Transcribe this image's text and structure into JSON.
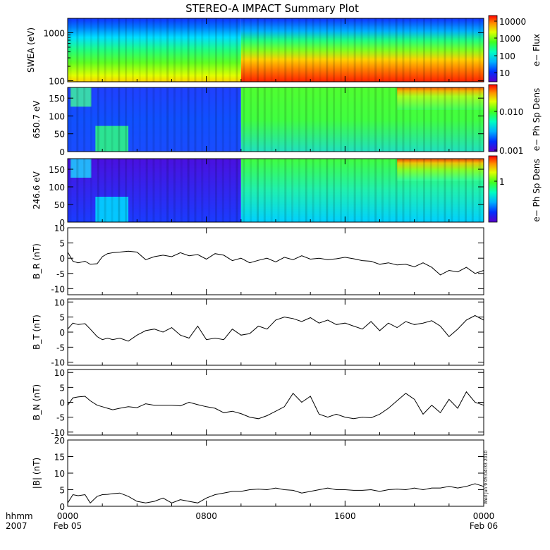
{
  "title": "STEREO-A IMPACT Summary Plot",
  "stamp": "Wed Jun 9 05:04:33 2010",
  "time_axis": {
    "label_top": "hhmm",
    "label_bottom": "2007",
    "ticks": [
      {
        "hour": 0,
        "top": "0000",
        "bottom": "Feb 05"
      },
      {
        "hour": 8,
        "top": "0800",
        "bottom": ""
      },
      {
        "hour": 16,
        "top": "1600",
        "bottom": ""
      },
      {
        "hour": 24,
        "top": "0000",
        "bottom": "Feb 06"
      }
    ]
  },
  "colorbars": [
    {
      "label": "e− Flux",
      "ticks": [
        "10000",
        "1000",
        "100",
        "10"
      ]
    },
    {
      "label": "e− Ph Sp Dens",
      "ticks": [
        "0.010",
        "0.001"
      ]
    },
    {
      "label": "e− Ph Sp Dens",
      "ticks": [
        "1"
      ]
    }
  ],
  "chart_data": [
    {
      "type": "heatmap",
      "ylabel": "SWEA (eV)",
      "yscale": "log",
      "ylim": [
        95,
        2000
      ],
      "yticks": [
        "1000",
        "100"
      ],
      "colorbar_label": "e− Flux",
      "description_values": {
        "low_energy_flux_before_1000": 1000,
        "low_energy_flux_after_1000": 10000
      }
    },
    {
      "type": "heatmap",
      "ylabel": "650.7 eV",
      "ylim": [
        0,
        180
      ],
      "yticks": [
        "150",
        "100",
        "50",
        "0"
      ],
      "colorbar_label": "e− Ph Sp Dens",
      "colorbar_ticks": [
        "0.010",
        "0.001"
      ]
    },
    {
      "type": "heatmap",
      "ylabel": "246.6 eV",
      "ylim": [
        0,
        180
      ],
      "yticks": [
        "150",
        "100",
        "50",
        "0"
      ],
      "colorbar_label": "e− Ph Sp Dens",
      "colorbar_ticks": [
        "1"
      ]
    },
    {
      "type": "line",
      "ylabel": "B_R (nT)",
      "ylim": [
        -12,
        10
      ],
      "yticks": [
        "10",
        "5",
        "0",
        "-5",
        "-10"
      ],
      "x": [
        0,
        0.3,
        0.6,
        1.0,
        1.3,
        1.7,
        2.0,
        2.3,
        2.6,
        3.0,
        3.5,
        4.0,
        4.5,
        5.0,
        5.5,
        6.0,
        6.5,
        7.0,
        7.5,
        8.0,
        8.5,
        9.0,
        9.5,
        10.0,
        10.5,
        11.0,
        11.5,
        12.0,
        12.5,
        13.0,
        13.5,
        14.0,
        14.5,
        15.0,
        15.5,
        16.0,
        16.5,
        17.0,
        17.5,
        18.0,
        18.5,
        19.0,
        19.5,
        20.0,
        20.5,
        21.0,
        21.5,
        22.0,
        22.5,
        23.0,
        23.5,
        24.0
      ],
      "y": [
        2.0,
        -1.0,
        -1.5,
        -1.0,
        -2.0,
        -1.8,
        0.5,
        1.5,
        1.8,
        2.0,
        2.3,
        2.0,
        -0.5,
        0.5,
        1.0,
        0.5,
        1.8,
        0.8,
        1.2,
        -0.3,
        1.5,
        1.0,
        -0.8,
        0.0,
        -1.5,
        -0.7,
        0.0,
        -1.2,
        0.3,
        -0.5,
        0.8,
        -0.3,
        0.0,
        -0.5,
        -0.2,
        0.3,
        -0.2,
        -0.8,
        -1.0,
        -2.0,
        -1.5,
        -2.2,
        -2.0,
        -2.8,
        -1.5,
        -3.0,
        -5.5,
        -4.0,
        -4.5,
        -3.0,
        -5.0,
        -4.0
      ]
    },
    {
      "type": "line",
      "ylabel": "B_T (nT)",
      "ylim": [
        -11,
        11
      ],
      "yticks": [
        "10",
        "5",
        "0",
        "-5",
        "-10"
      ],
      "x": [
        0,
        0.3,
        0.6,
        1.0,
        1.3,
        1.7,
        2.0,
        2.3,
        2.6,
        3.0,
        3.5,
        4.0,
        4.5,
        5.0,
        5.5,
        6.0,
        6.5,
        7.0,
        7.5,
        8.0,
        8.5,
        9.0,
        9.5,
        10.0,
        10.5,
        11.0,
        11.5,
        12.0,
        12.5,
        13.0,
        13.5,
        14.0,
        14.5,
        15.0,
        15.5,
        16.0,
        16.5,
        17.0,
        17.5,
        18.0,
        18.5,
        19.0,
        19.5,
        20.0,
        20.5,
        21.0,
        21.5,
        22.0,
        22.5,
        23.0,
        23.5,
        24.0
      ],
      "y": [
        1.0,
        3.0,
        2.5,
        2.8,
        1.0,
        -1.5,
        -2.5,
        -2.0,
        -2.5,
        -2.0,
        -3.0,
        -1.0,
        0.5,
        1.0,
        0.0,
        1.5,
        -1.0,
        -2.0,
        2.0,
        -2.5,
        -2.0,
        -2.5,
        1.0,
        -1.0,
        -0.5,
        2.0,
        1.0,
        4.0,
        5.0,
        4.5,
        3.5,
        4.8,
        3.0,
        4.0,
        2.5,
        3.0,
        2.0,
        1.0,
        3.5,
        0.5,
        3.0,
        1.5,
        3.5,
        2.5,
        3.0,
        3.8,
        2.0,
        -1.5,
        1.0,
        4.0,
        5.5,
        4.0
      ]
    },
    {
      "type": "line",
      "ylabel": "B_N (nT)",
      "ylim": [
        -11,
        11
      ],
      "yticks": [
        "10",
        "5",
        "0",
        "-5",
        "-10"
      ],
      "x": [
        0,
        0.3,
        0.6,
        1.0,
        1.3,
        1.7,
        2.0,
        2.3,
        2.6,
        3.0,
        3.5,
        4.0,
        4.5,
        5.0,
        5.5,
        6.0,
        6.5,
        7.0,
        7.5,
        8.0,
        8.5,
        9.0,
        9.5,
        10.0,
        10.5,
        11.0,
        11.5,
        12.0,
        12.5,
        13.0,
        13.5,
        14.0,
        14.5,
        15.0,
        15.5,
        16.0,
        16.5,
        17.0,
        17.5,
        18.0,
        18.5,
        19.0,
        19.5,
        20.0,
        20.5,
        21.0,
        21.5,
        22.0,
        22.5,
        23.0,
        23.5,
        24.0
      ],
      "y": [
        -1.0,
        1.5,
        1.8,
        2.0,
        0.5,
        -1.0,
        -1.5,
        -2.0,
        -2.5,
        -2.0,
        -1.5,
        -1.8,
        -0.5,
        -1.0,
        -1.0,
        -1.0,
        -1.2,
        0.0,
        -0.8,
        -1.5,
        -2.0,
        -3.5,
        -3.0,
        -3.8,
        -5.0,
        -5.5,
        -4.5,
        -3.0,
        -1.5,
        3.0,
        0.0,
        2.0,
        -4.0,
        -5.0,
        -4.0,
        -5.0,
        -5.5,
        -5.0,
        -5.2,
        -4.0,
        -2.0,
        0.5,
        3.0,
        1.0,
        -4.0,
        -1.0,
        -3.5,
        1.0,
        -2.0,
        3.5,
        0.0,
        -1.0
      ]
    },
    {
      "type": "line",
      "ylabel": "|B| (nT)",
      "ylim": [
        0,
        20
      ],
      "yticks": [
        "20",
        "15",
        "10",
        "5",
        "0"
      ],
      "x": [
        0,
        0.3,
        0.6,
        1.0,
        1.3,
        1.7,
        2.0,
        2.3,
        2.6,
        3.0,
        3.5,
        4.0,
        4.5,
        5.0,
        5.5,
        6.0,
        6.5,
        7.0,
        7.5,
        8.0,
        8.5,
        9.0,
        9.5,
        10.0,
        10.5,
        11.0,
        11.5,
        12.0,
        12.5,
        13.0,
        13.5,
        14.0,
        14.5,
        15.0,
        15.5,
        16.0,
        16.5,
        17.0,
        17.5,
        18.0,
        18.5,
        19.0,
        19.5,
        20.0,
        20.5,
        21.0,
        21.5,
        22.0,
        22.5,
        23.0,
        23.5,
        24.0
      ],
      "y": [
        1.0,
        3.5,
        3.2,
        3.5,
        1.0,
        3.0,
        3.5,
        3.6,
        3.8,
        4.0,
        3.0,
        1.5,
        1.0,
        1.5,
        2.5,
        1.0,
        2.0,
        1.5,
        1.0,
        2.5,
        3.5,
        4.0,
        4.5,
        4.5,
        5.0,
        5.2,
        5.0,
        5.5,
        5.0,
        4.8,
        4.0,
        4.5,
        5.0,
        5.5,
        5.0,
        5.0,
        4.8,
        4.8,
        5.0,
        4.5,
        5.0,
        5.2,
        5.0,
        5.5,
        5.0,
        5.5,
        5.5,
        6.0,
        5.5,
        6.0,
        6.8,
        6.0
      ]
    }
  ]
}
